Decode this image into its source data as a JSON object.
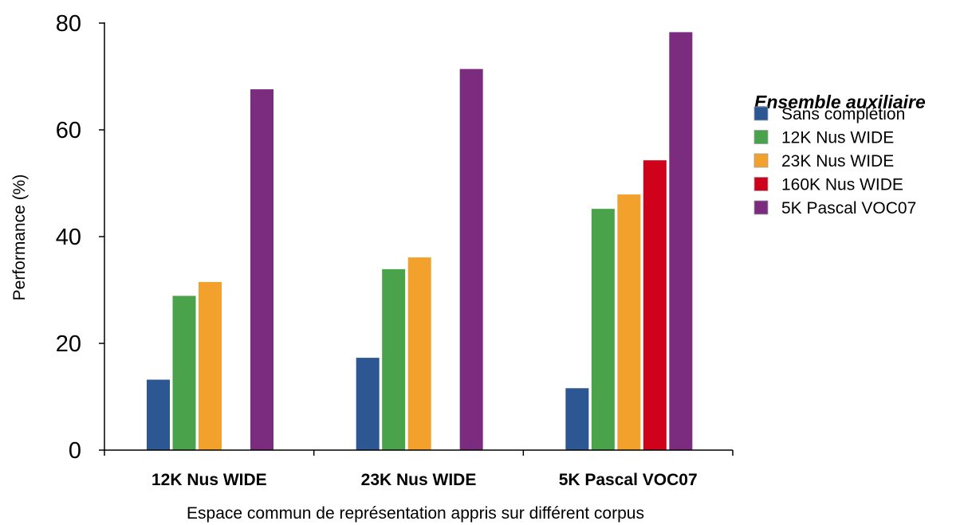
{
  "chart_data": {
    "type": "bar",
    "title": "",
    "xlabel": "Espace commun de représentation appris sur différent corpus",
    "ylabel": "Performance (%)",
    "ylim": [
      0,
      80
    ],
    "yticks": [
      "0",
      "20",
      "40",
      "60",
      "80"
    ],
    "grid": false,
    "categories": [
      "12K Nus WIDE",
      "23K Nus WIDE",
      "5K Pascal VOC07"
    ],
    "legend": {
      "title": "Ensemble auxiliaire",
      "position": "right"
    },
    "series": [
      {
        "name": "Sans complétion",
        "color": "#2d5793",
        "values": [
          13.2,
          17.3,
          11.6
        ]
      },
      {
        "name": "12K Nus WIDE",
        "color": "#4aa24a",
        "values": [
          28.9,
          33.9,
          45.2
        ]
      },
      {
        "name": "23K Nus WIDE",
        "color": "#f2a22c",
        "values": [
          31.5,
          36.1,
          47.9
        ]
      },
      {
        "name": "160K Nus WIDE",
        "color": "#d0021b",
        "values": [
          null,
          null,
          54.3
        ]
      },
      {
        "name": "5K Pascal VOC07",
        "color": "#7b2c7e",
        "values": [
          67.6,
          71.4,
          78.3
        ]
      }
    ]
  }
}
